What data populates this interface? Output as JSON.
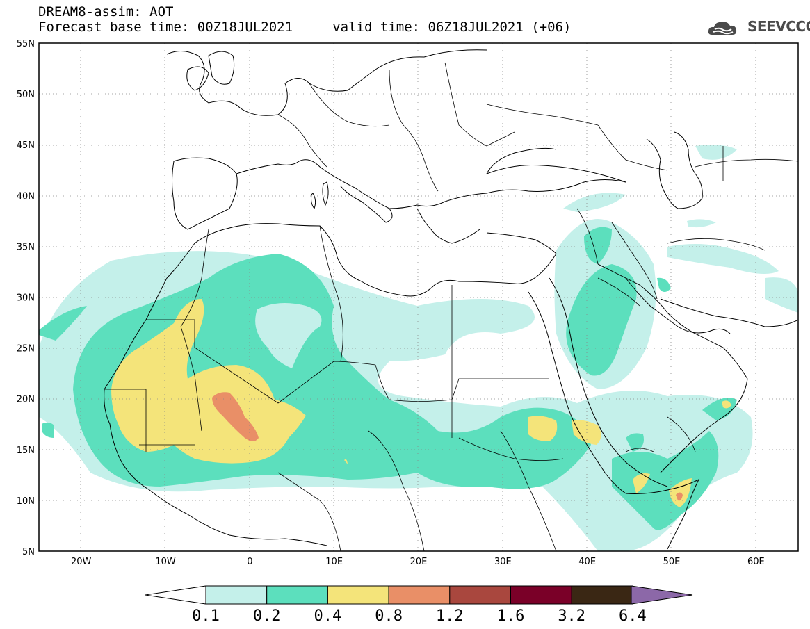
{
  "title": {
    "line1": "DREAM8-assim: AOT",
    "line2": "Forecast base time: 00Z18JUL2021     valid time: 06Z18JUL2021 (+06)"
  },
  "logo": {
    "text": "SEEVCCC",
    "icon": "cloud-logo-icon"
  },
  "map": {
    "lon_range": [
      -25,
      65
    ],
    "lat_range": [
      5,
      55
    ],
    "lat_ticks": [
      {
        "value": 55,
        "label": "55N"
      },
      {
        "value": 50,
        "label": "50N"
      },
      {
        "value": 45,
        "label": "45N"
      },
      {
        "value": 40,
        "label": "40N"
      },
      {
        "value": 35,
        "label": "35N"
      },
      {
        "value": 30,
        "label": "30N"
      },
      {
        "value": 25,
        "label": "25N"
      },
      {
        "value": 20,
        "label": "20N"
      },
      {
        "value": 15,
        "label": "15N"
      },
      {
        "value": 10,
        "label": "10N"
      },
      {
        "value": 5,
        "label": "5N"
      }
    ],
    "lon_ticks": [
      {
        "value": -20,
        "label": "20W"
      },
      {
        "value": -10,
        "label": "10W"
      },
      {
        "value": 0,
        "label": "0"
      },
      {
        "value": 10,
        "label": "10E"
      },
      {
        "value": 20,
        "label": "20E"
      },
      {
        "value": 30,
        "label": "30E"
      },
      {
        "value": 40,
        "label": "40E"
      },
      {
        "value": 50,
        "label": "50E"
      },
      {
        "value": 60,
        "label": "60E"
      }
    ],
    "grid": "dotted"
  },
  "colorbar": {
    "labels": [
      "0.1",
      "0.2",
      "0.4",
      "0.8",
      "1.2",
      "1.6",
      "3.2",
      "6.4"
    ],
    "colors": [
      "#c4f0ea",
      "#5cdfbd",
      "#f4e47a",
      "#e98f67",
      "#a9473e",
      "#7a0028",
      "#3a2714",
      "#8c68a8"
    ],
    "under_color": "#ffffff"
  }
}
